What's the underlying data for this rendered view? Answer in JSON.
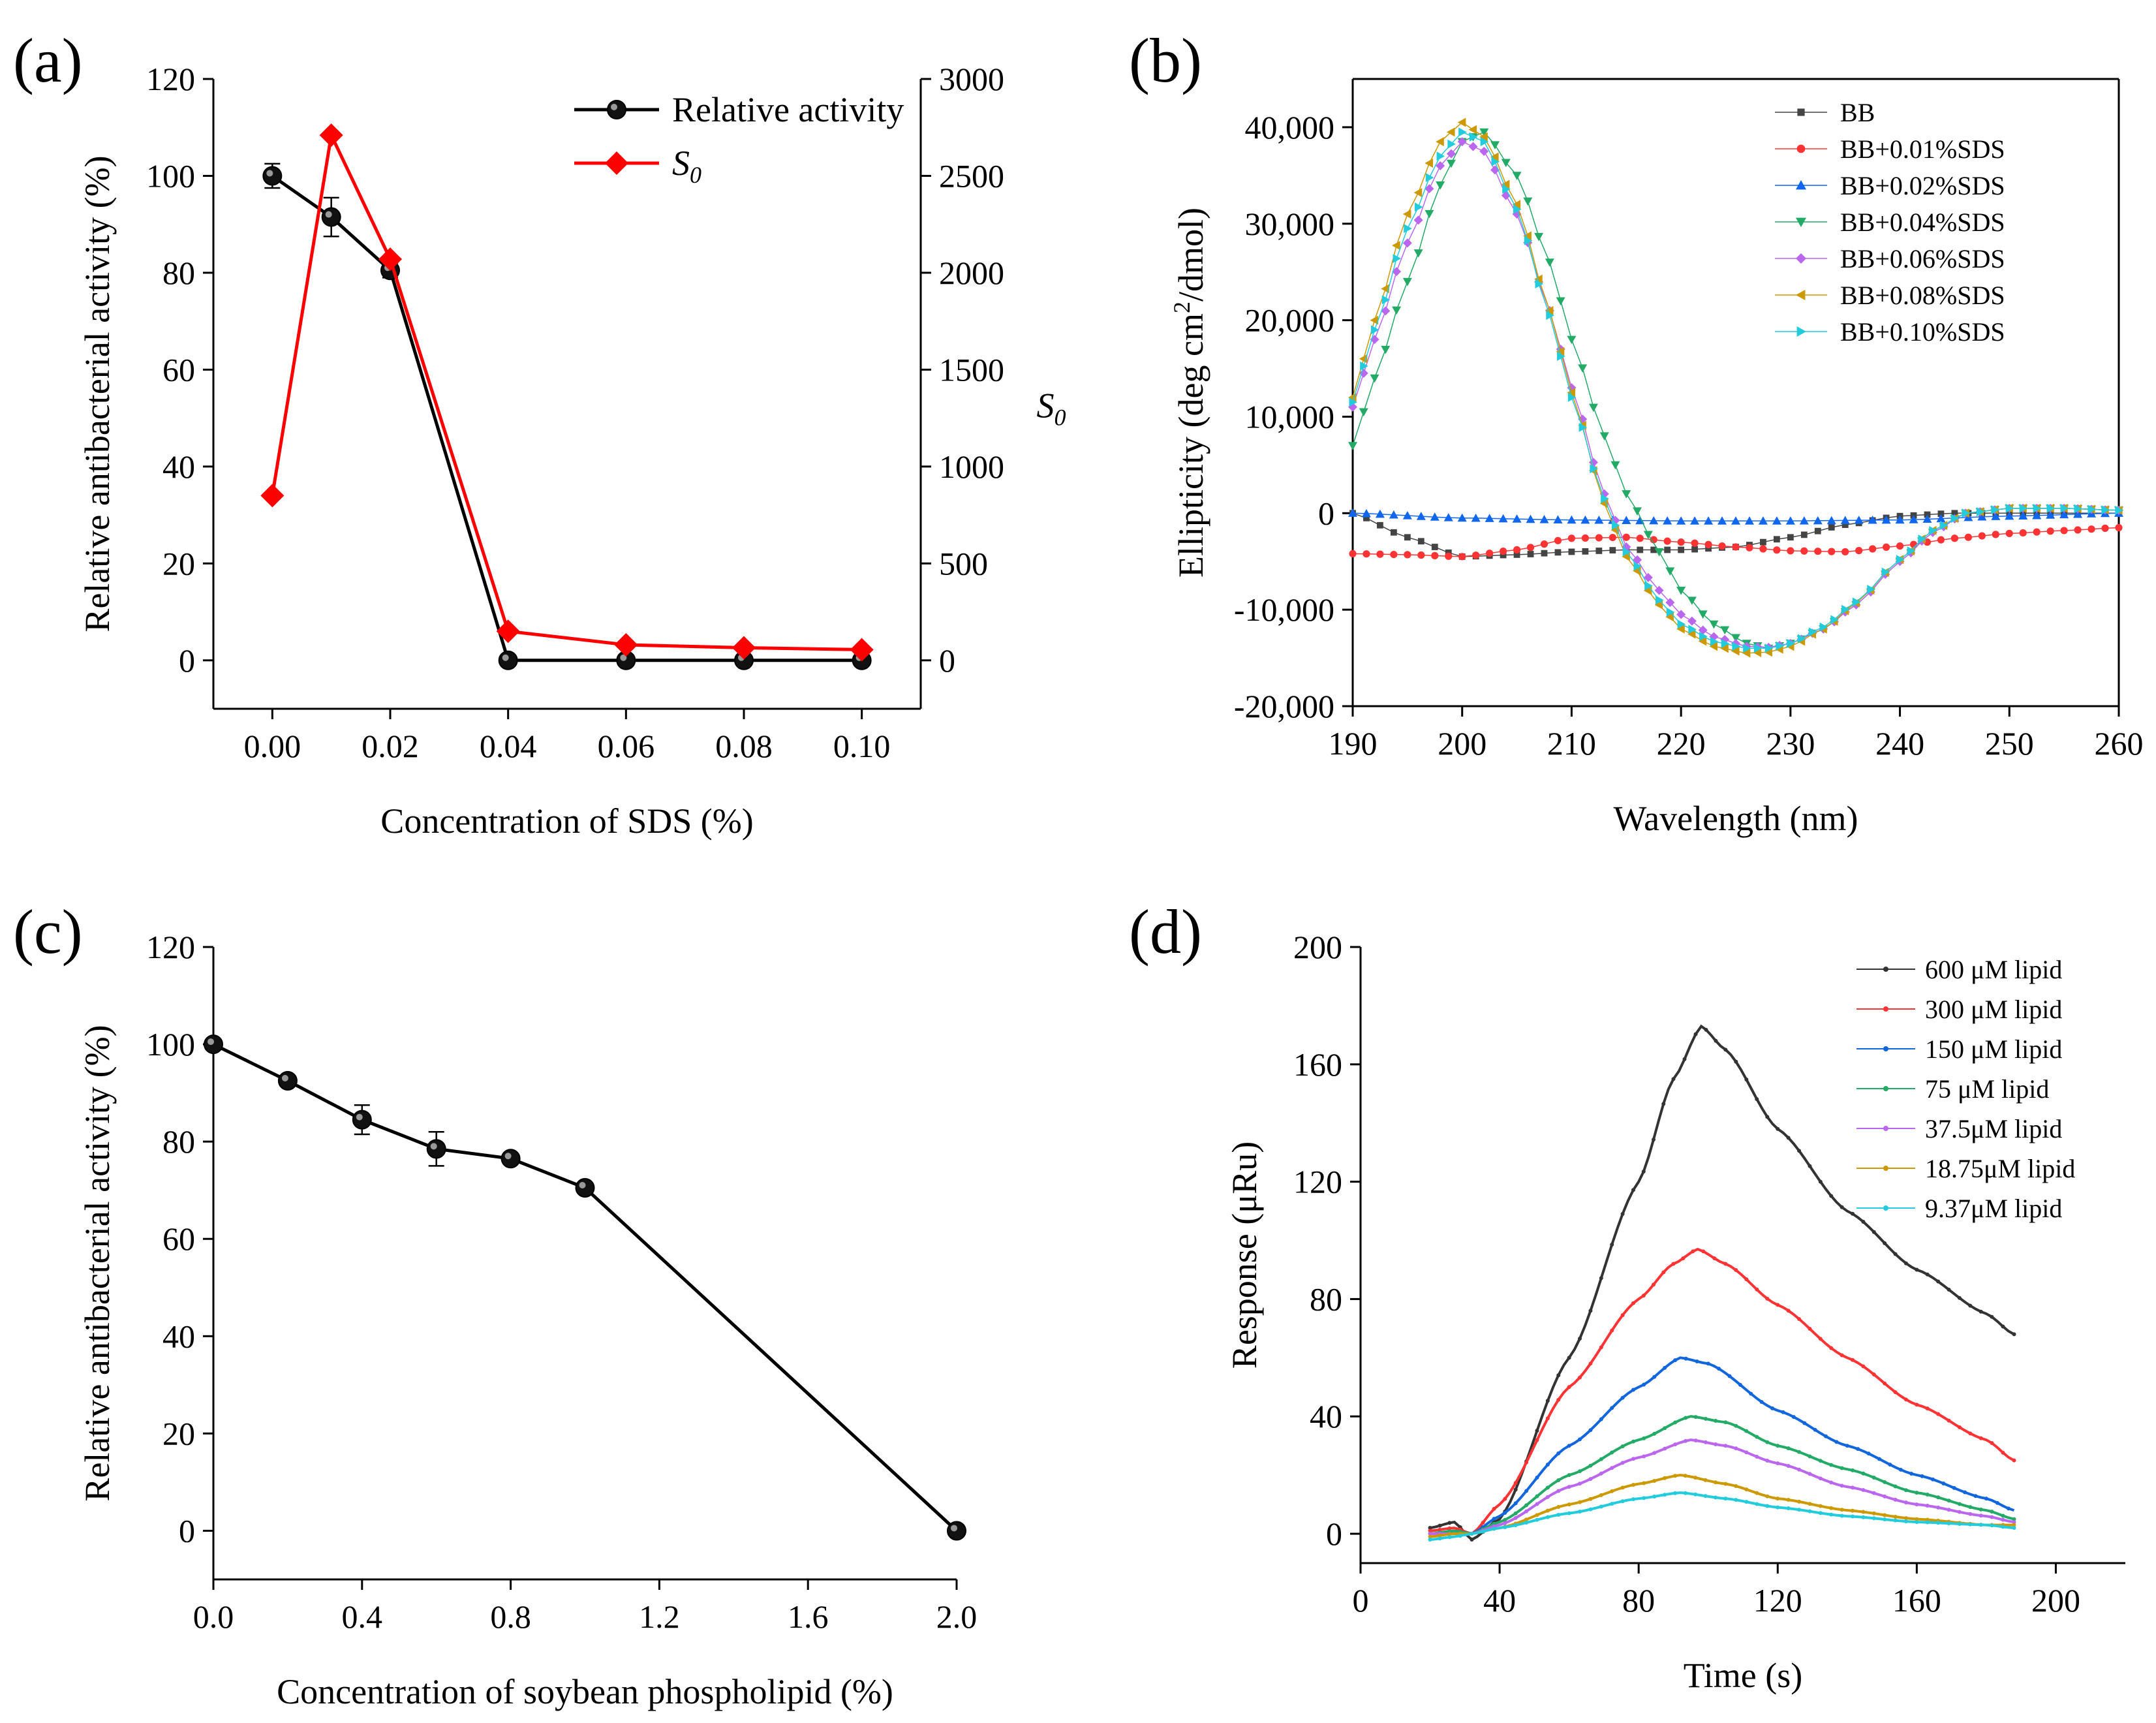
{
  "chart_data": [
    {
      "panel": "(a)",
      "type": "line",
      "xlabel": "Concentration of SDS (%)",
      "ylabel": "Relative antibacterial activity (%)",
      "y2label": "S",
      "y2label_sub": "0",
      "xlim": [
        -0.01,
        0.11
      ],
      "ylim": [
        -10,
        120
      ],
      "y2lim": [
        -250,
        3000
      ],
      "xticks": [
        0.0,
        0.02,
        0.04,
        0.06,
        0.08,
        0.1
      ],
      "xtick_labels": [
        "0.00",
        "0.02",
        "0.04",
        "0.06",
        "0.08",
        "0.10"
      ],
      "yticks": [
        0,
        20,
        40,
        60,
        80,
        100,
        120
      ],
      "ytick_labels": [
        "0",
        "20",
        "40",
        "60",
        "80",
        "100",
        "120"
      ],
      "y2ticks": [
        0,
        500,
        1000,
        1500,
        2000,
        2500,
        3000
      ],
      "y2tick_labels": [
        "0",
        "500",
        "1000",
        "1500",
        "2000",
        "2500",
        "3000"
      ],
      "legend": "top-right",
      "series": [
        {
          "name": "Relative activity",
          "axis": "left",
          "color": "#000000",
          "marker": "sphere",
          "x": [
            0.0,
            0.01,
            0.02,
            0.04,
            0.06,
            0.08,
            0.1
          ],
          "values": [
            100,
            91.5,
            80.5,
            0,
            0,
            0,
            0
          ],
          "errors": [
            2.5,
            4,
            1.5,
            0,
            0,
            0,
            0
          ]
        },
        {
          "name": "S",
          "name_sub": "0",
          "axis": "right",
          "color": "#ff0000",
          "marker": "diamond",
          "x": [
            0.0,
            0.01,
            0.02,
            0.04,
            0.06,
            0.08,
            0.1
          ],
          "values": [
            850,
            2710,
            2070,
            150,
            80,
            65,
            55
          ]
        }
      ]
    },
    {
      "panel": "(b)",
      "type": "line",
      "xlabel": "Wavelength (nm)",
      "ylabel": "Ellipticity (deg cm",
      "ylabel_sup": "2",
      "ylabel_tail": "/dmol)",
      "xlim": [
        190,
        260
      ],
      "ylim": [
        -20000,
        45000
      ],
      "xticks": [
        190,
        200,
        210,
        220,
        230,
        240,
        250,
        260
      ],
      "xtick_labels": [
        "190",
        "200",
        "210",
        "220",
        "230",
        "240",
        "250",
        "260"
      ],
      "yticks": [
        -20000,
        -10000,
        0,
        10000,
        20000,
        30000,
        40000
      ],
      "ytick_labels": [
        "-20,000",
        "-10,000",
        "0",
        "10,000",
        "20,000",
        "30,000",
        "40,000"
      ],
      "legend": "top-right",
      "series": [
        {
          "name": "BB",
          "color": "#444444",
          "marker": "square",
          "x": [
            190,
            195,
            200,
            205,
            210,
            215,
            220,
            225,
            230,
            235,
            240,
            245,
            250,
            255,
            260
          ],
          "values": [
            0,
            -2500,
            -4500,
            -4300,
            -4000,
            -3800,
            -3800,
            -3500,
            -2500,
            -1200,
            -300,
            0,
            0,
            0,
            0
          ]
        },
        {
          "name": "BB+0.01%SDS",
          "color": "#ff3333",
          "marker": "circle",
          "x": [
            190,
            195,
            200,
            205,
            210,
            215,
            220,
            225,
            230,
            235,
            240,
            245,
            250,
            255,
            260
          ],
          "values": [
            -4200,
            -4300,
            -4500,
            -3800,
            -2600,
            -2500,
            -3000,
            -3500,
            -3900,
            -4000,
            -3400,
            -2600,
            -2100,
            -1800,
            -1500
          ]
        },
        {
          "name": "BB+0.02%SDS",
          "color": "#1166ee",
          "marker": "triangle-up",
          "x": [
            190,
            200,
            210,
            220,
            230,
            240,
            250,
            260
          ],
          "values": [
            0,
            -500,
            -700,
            -800,
            -800,
            -700,
            -300,
            0
          ]
        },
        {
          "name": "BB+0.04%SDS",
          "color": "#22aa66",
          "marker": "triangle-down",
          "x": [
            190,
            192,
            195,
            198,
            200,
            202,
            205,
            208,
            210,
            213,
            215,
            218,
            220,
            223,
            226,
            228,
            230,
            233,
            236,
            240,
            243,
            246,
            250,
            255,
            260
          ],
          "values": [
            7000,
            14000,
            24000,
            34000,
            38500,
            39500,
            35000,
            26000,
            18000,
            8000,
            2000,
            -4000,
            -8000,
            -11500,
            -13500,
            -14000,
            -13500,
            -12000,
            -9500,
            -5000,
            -2000,
            0,
            500,
            500,
            300
          ]
        },
        {
          "name": "BB+0.06%SDS",
          "color": "#bb66ee",
          "marker": "diamond",
          "x": [
            190,
            192,
            195,
            198,
            200,
            202,
            205,
            208,
            210,
            213,
            215,
            218,
            220,
            223,
            226,
            228,
            230,
            233,
            236,
            240,
            243,
            246,
            250,
            255,
            260
          ],
          "values": [
            11000,
            18000,
            28000,
            36000,
            38500,
            37500,
            31000,
            21000,
            13000,
            2000,
            -3500,
            -8000,
            -10500,
            -12800,
            -13800,
            -13900,
            -13500,
            -12000,
            -9500,
            -5000,
            -2000,
            0,
            500,
            500,
            300
          ]
        },
        {
          "name": "BB+0.08%SDS",
          "color": "#cc9900",
          "marker": "triangle-left",
          "x": [
            190,
            192,
            195,
            198,
            200,
            202,
            205,
            208,
            210,
            213,
            215,
            218,
            220,
            223,
            226,
            228,
            230,
            233,
            236,
            240,
            243,
            246,
            250,
            255,
            260
          ],
          "values": [
            12000,
            20000,
            31000,
            38500,
            40500,
            39000,
            32000,
            21000,
            12500,
            1000,
            -4500,
            -9500,
            -12000,
            -13800,
            -14500,
            -14400,
            -13800,
            -12000,
            -9300,
            -4800,
            -1800,
            0,
            500,
            500,
            300
          ]
        },
        {
          "name": "BB+0.10%SDS",
          "color": "#22ccdd",
          "marker": "triangle-right",
          "x": [
            190,
            192,
            195,
            198,
            200,
            202,
            205,
            208,
            210,
            213,
            215,
            218,
            220,
            223,
            226,
            228,
            230,
            233,
            236,
            240,
            243,
            246,
            250,
            255,
            260
          ],
          "values": [
            11500,
            19000,
            29500,
            37000,
            39500,
            38500,
            31500,
            20500,
            12000,
            1500,
            -4000,
            -9000,
            -11500,
            -13300,
            -14000,
            -14000,
            -13500,
            -11800,
            -9200,
            -4800,
            -1800,
            0,
            500,
            500,
            300
          ]
        }
      ]
    },
    {
      "panel": "(c)",
      "type": "line",
      "xlabel": "Concentration of soybean phospholipid (%)",
      "ylabel": "Relative antibacterial activity (%)",
      "xlim": [
        0,
        2.0
      ],
      "ylim": [
        -10,
        120
      ],
      "xticks": [
        0.0,
        0.4,
        0.8,
        1.2,
        1.6,
        2.0
      ],
      "xtick_labels": [
        "0.0",
        "0.4",
        "0.8",
        "1.2",
        "1.6",
        "2.0"
      ],
      "yticks": [
        0,
        20,
        40,
        60,
        80,
        100,
        120
      ],
      "ytick_labels": [
        "0",
        "20",
        "40",
        "60",
        "80",
        "100",
        "120"
      ],
      "series": [
        {
          "name": "Relative activity",
          "color": "#000000",
          "marker": "sphere",
          "x": [
            0.0,
            0.2,
            0.4,
            0.6,
            0.8,
            1.0,
            2.0
          ],
          "values": [
            100,
            92.5,
            84.5,
            78.5,
            76.5,
            70.5,
            0
          ],
          "errors": [
            0,
            1,
            3,
            3.5,
            1,
            1,
            0
          ]
        }
      ]
    },
    {
      "panel": "(d)",
      "type": "line",
      "xlabel": "Time (s)",
      "ylabel": "Response (μRu)",
      "xlim": [
        0,
        220
      ],
      "ylim": [
        -10,
        200
      ],
      "xticks": [
        0,
        40,
        80,
        120,
        160,
        200
      ],
      "xtick_labels": [
        "0",
        "40",
        "80",
        "120",
        "160",
        "200"
      ],
      "yticks": [
        0,
        40,
        80,
        120,
        160,
        200
      ],
      "ytick_labels": [
        "0",
        "40",
        "80",
        "120",
        "160",
        "200"
      ],
      "legend": "top-right",
      "series": [
        {
          "name": "600 μM lipid",
          "color": "#333333",
          "x": [
            20,
            27,
            32,
            40,
            60,
            80,
            90,
            98,
            105,
            120,
            140,
            160,
            180,
            188
          ],
          "values": [
            2,
            4,
            -2,
            5,
            60,
            120,
            155,
            173,
            165,
            138,
            110,
            90,
            75,
            68
          ]
        },
        {
          "name": "300 μM lipid",
          "color": "#ff3333",
          "x": [
            20,
            27,
            32,
            40,
            60,
            80,
            90,
            97,
            105,
            120,
            140,
            160,
            180,
            188
          ],
          "values": [
            1,
            2,
            0,
            10,
            50,
            80,
            92,
            97,
            92,
            78,
            60,
            44,
            32,
            25
          ]
        },
        {
          "name": "150 μM lipid",
          "color": "#1166dd",
          "x": [
            20,
            27,
            32,
            40,
            60,
            80,
            92,
            100,
            120,
            140,
            160,
            180,
            188
          ],
          "values": [
            0,
            1,
            0,
            6,
            30,
            50,
            60,
            58,
            42,
            30,
            20,
            12,
            8
          ]
        },
        {
          "name": "75 μM lipid",
          "color": "#22aa66",
          "x": [
            20,
            27,
            32,
            40,
            60,
            80,
            95,
            105,
            120,
            140,
            160,
            180,
            188
          ],
          "values": [
            0,
            1,
            0,
            4,
            20,
            32,
            40,
            38,
            30,
            22,
            14,
            8,
            5
          ]
        },
        {
          "name": "37.5μM lipid",
          "color": "#bb66ee",
          "x": [
            20,
            27,
            32,
            40,
            60,
            80,
            95,
            105,
            120,
            140,
            160,
            180,
            188
          ],
          "values": [
            0,
            0,
            0,
            3,
            16,
            26,
            32,
            30,
            24,
            16,
            10,
            6,
            4
          ]
        },
        {
          "name": "18.75μM lipid",
          "color": "#cc9900",
          "x": [
            20,
            27,
            32,
            40,
            60,
            80,
            92,
            105,
            120,
            140,
            160,
            180,
            188
          ],
          "values": [
            -1,
            0,
            0,
            2,
            10,
            17,
            20,
            17,
            12,
            8,
            5,
            3,
            3
          ]
        },
        {
          "name": "9.37μM lipid",
          "color": "#22ccdd",
          "x": [
            20,
            27,
            32,
            40,
            60,
            80,
            92,
            105,
            120,
            140,
            160,
            180,
            188
          ],
          "values": [
            -2,
            -1,
            0,
            2,
            7,
            12,
            14,
            12,
            9,
            6,
            4,
            3,
            2
          ]
        }
      ]
    }
  ]
}
